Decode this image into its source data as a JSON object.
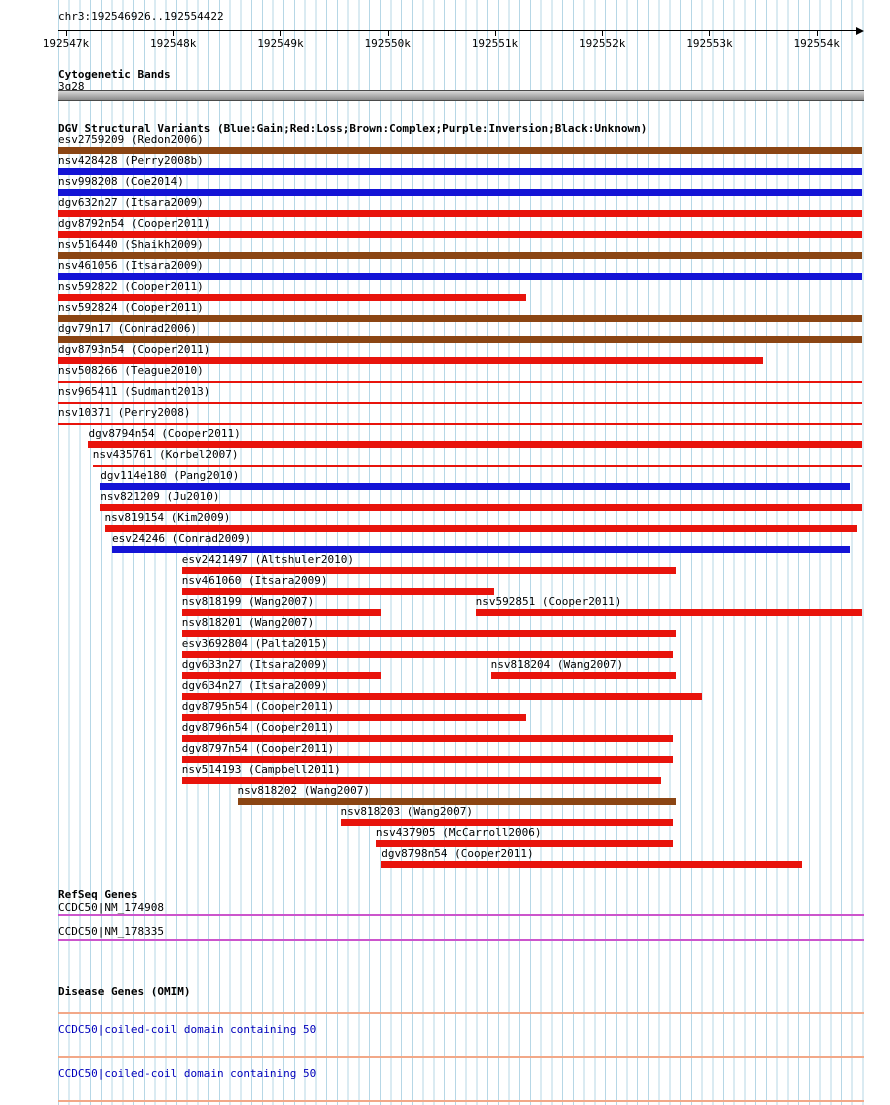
{
  "chart_data": {
    "type": "bar",
    "title": "chr3:192546926..192554422",
    "region": {
      "chrom": "chr3",
      "start": 192546926,
      "end": 192554422,
      "unit": "bp"
    },
    "ruler": {
      "ticks": [
        {
          "pos": 192547000,
          "label": "192547k"
        },
        {
          "pos": 192548000,
          "label": "192548k"
        },
        {
          "pos": 192549000,
          "label": "192549k"
        },
        {
          "pos": 192550000,
          "label": "192550k"
        },
        {
          "pos": 192551000,
          "label": "192551k"
        },
        {
          "pos": 192552000,
          "label": "192552k"
        },
        {
          "pos": 192553000,
          "label": "192553k"
        },
        {
          "pos": 192554000,
          "label": "192554k"
        }
      ]
    },
    "cytogenetic": {
      "title": "Cytogenetic Bands",
      "band": {
        "label": "3q28",
        "start": 192546926,
        "end": 192554422,
        "color": "#aaaaaa"
      }
    },
    "dgv": {
      "title": "DGV Structural Variants (Blue:Gain;Red:Loss;Brown:Complex;Purple:Inversion;Black:Unknown)",
      "colors": {
        "gain": "#1414d6",
        "loss": "#e8140c",
        "complex": "#8b4513",
        "inversion": "#800080",
        "unknown": "#000000"
      },
      "rows": [
        [
          {
            "label": "esv2759209 (Redon2006)",
            "type": "complex",
            "start": 192546926,
            "end": 192554422
          }
        ],
        [
          {
            "label": "nsv428428 (Perry2008b)",
            "type": "gain",
            "start": 192546926,
            "end": 192554422
          }
        ],
        [
          {
            "label": "nsv998208 (Coe2014)",
            "type": "gain",
            "start": 192546926,
            "end": 192554422
          }
        ],
        [
          {
            "label": "dgv632n27 (Itsara2009)",
            "type": "loss",
            "start": 192546926,
            "end": 192554422
          }
        ],
        [
          {
            "label": "dgv8792n54 (Cooper2011)",
            "type": "loss",
            "start": 192546926,
            "end": 192554422
          }
        ],
        [
          {
            "label": "nsv516440 (Shaikh2009)",
            "type": "complex",
            "start": 192546926,
            "end": 192554422
          }
        ],
        [
          {
            "label": "nsv461056 (Itsara2009)",
            "type": "gain",
            "start": 192546926,
            "end": 192554422
          }
        ],
        [
          {
            "label": "nsv592822 (Cooper2011)",
            "type": "loss",
            "start": 192546926,
            "end": 192551290
          }
        ],
        [
          {
            "label": "nsv592824 (Cooper2011)",
            "type": "complex",
            "start": 192546926,
            "end": 192554422
          }
        ],
        [
          {
            "label": "dgv79n17 (Conrad2006)",
            "type": "complex",
            "start": 192546926,
            "end": 192554422
          }
        ],
        [
          {
            "label": "dgv8793n54 (Cooper2011)",
            "type": "loss",
            "start": 192546926,
            "end": 192553500
          }
        ],
        [
          {
            "label": "nsv508266 (Teague2010)",
            "type": "loss",
            "thin": true,
            "start": 192546926,
            "end": 192554422
          }
        ],
        [
          {
            "label": "nsv965411 (Sudmant2013)",
            "type": "loss",
            "thin": true,
            "start": 192546926,
            "end": 192554422
          }
        ],
        [
          {
            "label": "nsv10371 (Perry2008)",
            "type": "loss",
            "thin": true,
            "start": 192546926,
            "end": 192554422
          }
        ],
        [
          {
            "label": "dgv8794n54 (Cooper2011)",
            "type": "loss",
            "start": 192547210,
            "end": 192554422
          }
        ],
        [
          {
            "label": "nsv435761 (Korbel2007)",
            "type": "loss",
            "thin": true,
            "start": 192547250,
            "end": 192554422
          }
        ],
        [
          {
            "label": "dgv114e180 (Pang2010)",
            "type": "gain",
            "start": 192547320,
            "end": 192554310
          }
        ],
        [
          {
            "label": "nsv821209 (Ju2010)",
            "type": "loss",
            "start": 192547320,
            "end": 192554422
          }
        ],
        [
          {
            "label": "nsv819154 (Kim2009)",
            "type": "loss",
            "start": 192547360,
            "end": 192554380
          }
        ],
        [
          {
            "label": "esv24246 (Conrad2009)",
            "type": "gain",
            "start": 192547430,
            "end": 192554310
          }
        ],
        [
          {
            "label": "esv2421497 (Altshuler2010)",
            "type": "loss",
            "start": 192548080,
            "end": 192552690
          }
        ],
        [
          {
            "label": "nsv461060 (Itsara2009)",
            "type": "loss",
            "start": 192548080,
            "end": 192550990
          }
        ],
        [
          {
            "label": "nsv818199 (Wang2007)",
            "type": "loss",
            "start": 192548080,
            "end": 192549940
          },
          {
            "label": "nsv592851 (Cooper2011)",
            "type": "loss",
            "start": 192550820,
            "end": 192554422
          }
        ],
        [
          {
            "label": "nsv818201 (Wang2007)",
            "type": "loss",
            "start": 192548080,
            "end": 192552690
          }
        ],
        [
          {
            "label": "esv3692804 (Palta2015)",
            "type": "loss",
            "start": 192548080,
            "end": 192552660
          }
        ],
        [
          {
            "label": "dgv633n27 (Itsara2009)",
            "type": "loss",
            "start": 192548080,
            "end": 192549940
          },
          {
            "label": "nsv818204 (Wang2007)",
            "type": "loss",
            "start": 192550960,
            "end": 192552690
          }
        ],
        [
          {
            "label": "dgv634n27 (Itsara2009)",
            "type": "loss",
            "start": 192548080,
            "end": 192552930
          }
        ],
        [
          {
            "label": "dgv8795n54 (Cooper2011)",
            "type": "loss",
            "start": 192548080,
            "end": 192551290
          }
        ],
        [
          {
            "label": "dgv8796n54 (Cooper2011)",
            "type": "loss",
            "start": 192548080,
            "end": 192552660
          }
        ],
        [
          {
            "label": "dgv8797n54 (Cooper2011)",
            "type": "loss",
            "start": 192548080,
            "end": 192552660
          }
        ],
        [
          {
            "label": "nsv514193 (Campbell2011)",
            "type": "loss",
            "start": 192548080,
            "end": 192552550
          }
        ],
        [
          {
            "label": "nsv818202 (Wang2007)",
            "type": "complex",
            "start": 192548600,
            "end": 192552690
          }
        ],
        [
          {
            "label": "nsv818203 (Wang2007)",
            "type": "loss",
            "start": 192549560,
            "end": 192552660
          }
        ],
        [
          {
            "label": "nsv437905 (McCarroll2006)",
            "type": "loss",
            "start": 192549890,
            "end": 192552660
          }
        ],
        [
          {
            "label": "dgv8798n54 (Cooper2011)",
            "type": "loss",
            "start": 192549940,
            "end": 192553860
          }
        ]
      ]
    },
    "refseq": {
      "title": "RefSeq Genes",
      "color": "#cc55cc",
      "entries": [
        {
          "label": "CCDC50|NM_174908",
          "start": 192546926,
          "end": 192554422
        },
        {
          "label": "CCDC50|NM_178335",
          "start": 192546926,
          "end": 192554422
        }
      ]
    },
    "omim": {
      "title": "Disease Genes (OMIM)",
      "color": "#f2a888",
      "entries": [
        {
          "label": "CCDC50|coiled-coil domain containing 50",
          "start": 192546926,
          "end": 192554422
        },
        {
          "label": "CCDC50|coiled-coil domain containing 50",
          "start": 192546926,
          "end": 192554422
        }
      ]
    }
  }
}
